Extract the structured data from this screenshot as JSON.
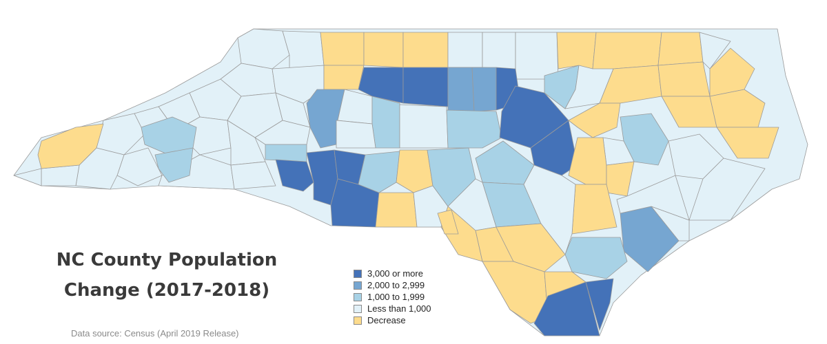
{
  "title_line1": "NC County Population",
  "title_line2": "Change (2017-2018)",
  "source": "Data source: Census (April 2019 Release)",
  "colors": {
    "c3000": "#4472b8",
    "c2000": "#76a6d1",
    "c1000": "#a8d2e6",
    "clt1000": "#e2f1f8",
    "cdecrease": "#fddc8d",
    "border": "#9a9a9a"
  },
  "legend": [
    {
      "label": "3,000 or more",
      "color": "#4472b8"
    },
    {
      "label": "2,000 to 2,999",
      "color": "#76a6d1"
    },
    {
      "label": "1,000 to 1,999",
      "color": "#a8d2e6"
    },
    {
      "label": "Less than 1,000",
      "color": "#e2f1f8"
    },
    {
      "label": "Decrease",
      "color": "#fddc8d"
    }
  ]
}
